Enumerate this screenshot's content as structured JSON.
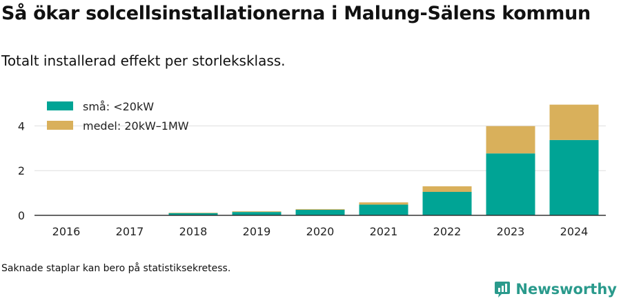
{
  "title": "Så ökar solcellsinstallationerna i Malung-Sälens kommun",
  "subtitle": "Totalt installerad effekt per storleksklass.",
  "note": "Saknade staplar kan bero på statistiksekretess.",
  "brand": {
    "name": "Newsworthy",
    "icon": "newsworthy-logo-icon",
    "color": "#2a9a8c"
  },
  "chart_data": {
    "type": "bar",
    "stacked": true,
    "categories": [
      "2016",
      "2017",
      "2018",
      "2019",
      "2020",
      "2021",
      "2022",
      "2023",
      "2024"
    ],
    "series": [
      {
        "name": "små: <20kW",
        "color": "#00a495",
        "values": [
          0,
          0,
          0.1,
          0.15,
          0.25,
          0.48,
          1.05,
          2.77,
          3.37
        ]
      },
      {
        "name": "medel: 20kW–1MW",
        "color": "#d9b05b",
        "values": [
          0,
          0,
          0.02,
          0.03,
          0.03,
          0.1,
          0.25,
          1.22,
          1.58
        ]
      }
    ],
    "ylim": [
      0,
      5
    ],
    "yticks": [
      0,
      2,
      4
    ],
    "xlabel": "",
    "ylabel": "",
    "grid": true,
    "legend": "top-left"
  }
}
